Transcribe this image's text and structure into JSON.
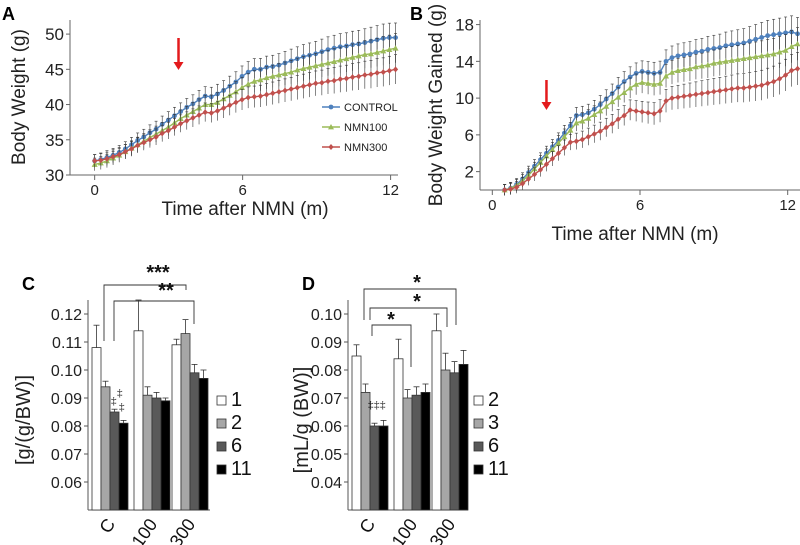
{
  "panels": {
    "A": {
      "label": "A"
    },
    "B": {
      "label": "B"
    },
    "C": {
      "label": "C"
    },
    "D": {
      "label": "D"
    }
  },
  "chart_data": [
    {
      "id": "A",
      "type": "line",
      "xlabel": "Time after NMN (m)",
      "ylabel": "Body Weight (g)",
      "xticks": [
        "0",
        "6",
        "12"
      ],
      "yticks": [
        "30",
        "35",
        "40",
        "45",
        "50"
      ],
      "xlim": [
        -1,
        12.3
      ],
      "ylim": [
        30,
        52
      ],
      "grid": false,
      "legend_position": "right",
      "arrow_at_x": 3.4,
      "n_points": 50,
      "series": [
        {
          "name": "CONTROL",
          "color": "#4f81bd",
          "marker": "circle",
          "values": [
            32,
            32.2,
            32.5,
            32.8,
            33.2,
            33.7,
            34.3,
            34.9,
            35.4,
            36,
            36.5,
            37.2,
            37.8,
            38.4,
            39,
            39.6,
            40.1,
            40.7,
            41.2,
            41.1,
            41.5,
            42,
            42.6,
            43.2,
            44,
            44.6,
            45,
            45,
            45.3,
            45.4,
            45.6,
            45.9,
            46.2,
            46.5,
            46.8,
            47,
            47.2,
            47.5,
            47.8,
            48,
            48.2,
            48.3,
            48.5,
            48.6,
            48.8,
            49,
            49.2,
            49.4,
            49.5,
            49.5
          ]
        },
        {
          "name": "NMN100",
          "color": "#9bbb59",
          "marker": "triangle",
          "values": [
            31.5,
            31.7,
            32,
            32.4,
            32.8,
            33.3,
            33.8,
            34.3,
            34.8,
            35.3,
            35.8,
            36.3,
            36.8,
            37.4,
            38,
            38.5,
            39,
            39.5,
            40,
            40,
            40.3,
            40.8,
            41.3,
            41.8,
            42.4,
            42.9,
            43.3,
            43.5,
            43.8,
            44,
            44.2,
            44.4,
            44.6,
            44.9,
            45.1,
            45.3,
            45.5,
            45.7,
            45.9,
            46.1,
            46.3,
            46.5,
            46.7,
            46.9,
            47.1,
            47.2,
            47.4,
            47.6,
            47.8,
            48
          ]
        },
        {
          "name": "NMN300",
          "color": "#c0504d",
          "marker": "diamond",
          "values": [
            32,
            32.1,
            32.3,
            32.6,
            32.9,
            33.3,
            33.7,
            34.2,
            34.6,
            35,
            35.4,
            35.9,
            36.3,
            36.8,
            37.3,
            37.7,
            38.1,
            38.5,
            38.9,
            38.8,
            39.1,
            39.5,
            39.9,
            40.3,
            40.7,
            41,
            41.1,
            41.2,
            41.4,
            41.6,
            41.8,
            42,
            42.2,
            42.4,
            42.6,
            42.8,
            43,
            43.1,
            43.3,
            43.4,
            43.6,
            43.7,
            43.9,
            44,
            44.2,
            44.3,
            44.5,
            44.6,
            44.8,
            45
          ]
        }
      ]
    },
    {
      "id": "B",
      "type": "line",
      "xlabel": "Time after NMN (m)",
      "ylabel": "Body Weight Gained (g)",
      "xticks": [
        "0",
        "6",
        "12"
      ],
      "yticks": [
        "2",
        "6",
        "10",
        "14",
        "18"
      ],
      "xlim": [
        -0.5,
        12.5
      ],
      "ylim": [
        0,
        18.5
      ],
      "grid": false,
      "arrow_at_x": 2.2,
      "n_points": 50,
      "series": [
        {
          "name": "CONTROL",
          "color": "#4f81bd",
          "marker": "circle",
          "values": [
            0,
            0.2,
            0.6,
            1.2,
            1.9,
            2.6,
            3.3,
            4,
            4.7,
            5.4,
            6.2,
            7,
            8.1,
            8.2,
            8.4,
            8.8,
            9.3,
            9.9,
            10.5,
            11.2,
            11.8,
            12.3,
            12.7,
            12.9,
            12.8,
            12.7,
            12.8,
            14,
            14.4,
            14.6,
            14.7,
            14.8,
            15,
            15.1,
            15.3,
            15.4,
            15.5,
            15.7,
            15.8,
            15.9,
            16,
            16.2,
            16.4,
            16.6,
            16.8,
            16.9,
            17,
            17.1,
            17.2,
            17
          ]
        },
        {
          "name": "NMN100",
          "color": "#9bbb59",
          "marker": "triangle",
          "values": [
            0,
            0.2,
            0.5,
            1,
            1.6,
            2.3,
            3,
            3.7,
            4.4,
            5.1,
            5.8,
            6.5,
            7.3,
            7.5,
            7.8,
            8.2,
            8.6,
            9.1,
            9.6,
            10.1,
            10.6,
            11.1,
            11.5,
            11.7,
            11.6,
            11.5,
            11.6,
            12.4,
            12.8,
            13,
            13.1,
            13.2,
            13.4,
            13.5,
            13.6,
            13.8,
            13.9,
            14,
            14.1,
            14.2,
            14.3,
            14.4,
            14.5,
            14.6,
            14.7,
            14.8,
            15,
            15.2,
            15.6,
            15.9
          ]
        },
        {
          "name": "NMN300",
          "color": "#c0504d",
          "marker": "diamond",
          "values": [
            0,
            0.1,
            0.3,
            0.7,
            1.2,
            1.7,
            2.2,
            2.8,
            3.4,
            4,
            4.6,
            5.2,
            5.3,
            5.5,
            5.8,
            6.1,
            6.4,
            6.8,
            7.2,
            7.7,
            8.1,
            8.7,
            8.6,
            8.5,
            8.4,
            8.3,
            8.6,
            9.7,
            10,
            10.1,
            10.2,
            10.3,
            10.4,
            10.5,
            10.6,
            10.7,
            10.8,
            10.9,
            11,
            11.1,
            11.1,
            11.2,
            11.3,
            11.4,
            11.6,
            11.8,
            12.1,
            12.5,
            13,
            13.2
          ]
        }
      ]
    },
    {
      "id": "C",
      "type": "bar",
      "ylabel": "[g/(g/BW)]",
      "categories": [
        "C",
        "100",
        "300"
      ],
      "yticks": [
        "0.06",
        "0.07",
        "0.08",
        "0.09",
        "0.10",
        "0.11",
        "0.12"
      ],
      "ylim": [
        0.05,
        0.125
      ],
      "legend_position": "right",
      "series": [
        {
          "name": "1",
          "color": "#ffffff",
          "values": [
            0.108,
            0.114,
            0.109
          ],
          "errors": [
            0.008,
            0.011,
            0.002
          ]
        },
        {
          "name": "2",
          "color": "#a6a6a6",
          "values": [
            0.094,
            0.091,
            0.113
          ],
          "errors": [
            0.002,
            0.003,
            0.005
          ]
        },
        {
          "name": "6",
          "color": "#595959",
          "values": [
            0.085,
            0.09,
            0.099
          ],
          "errors": [
            0.001,
            0.002,
            0.003
          ]
        },
        {
          "name": "11",
          "color": "#000000",
          "values": [
            0.081,
            0.089,
            0.097
          ],
          "errors": [
            0.001,
            0.001,
            0.003
          ]
        }
      ],
      "annotations": {
        "stars_top": "***",
        "stars_bottom": "**",
        "daggers": [
          "‡",
          "‡",
          "‡"
        ]
      }
    },
    {
      "id": "D",
      "type": "bar",
      "ylabel": "[mL/g (BW)]",
      "categories": [
        "C",
        "100",
        "300"
      ],
      "yticks": [
        "0.04",
        "0.05",
        "0.06",
        "0.07",
        "0.08",
        "0.09",
        "0.10"
      ],
      "ylim": [
        0.03,
        0.105
      ],
      "legend_position": "right",
      "series": [
        {
          "name": "2",
          "color": "#ffffff",
          "values": [
            0.085,
            0.084,
            0.094
          ],
          "errors": [
            0.004,
            0.007,
            0.006
          ]
        },
        {
          "name": "3",
          "color": "#a6a6a6",
          "values": [
            0.072,
            0.07,
            0.08
          ],
          "errors": [
            0.003,
            0.003,
            0.006
          ]
        },
        {
          "name": "6",
          "color": "#595959",
          "values": [
            0.06,
            0.071,
            0.079
          ],
          "errors": [
            0.001,
            0.003,
            0.004
          ]
        },
        {
          "name": "11",
          "color": "#000000",
          "values": [
            0.06,
            0.072,
            0.082
          ],
          "errors": [
            0.002,
            0.003,
            0.005
          ]
        }
      ],
      "annotations": {
        "stars": [
          "*",
          "*",
          "*"
        ],
        "daggers": [
          "‡",
          "‡",
          "‡"
        ]
      }
    }
  ]
}
